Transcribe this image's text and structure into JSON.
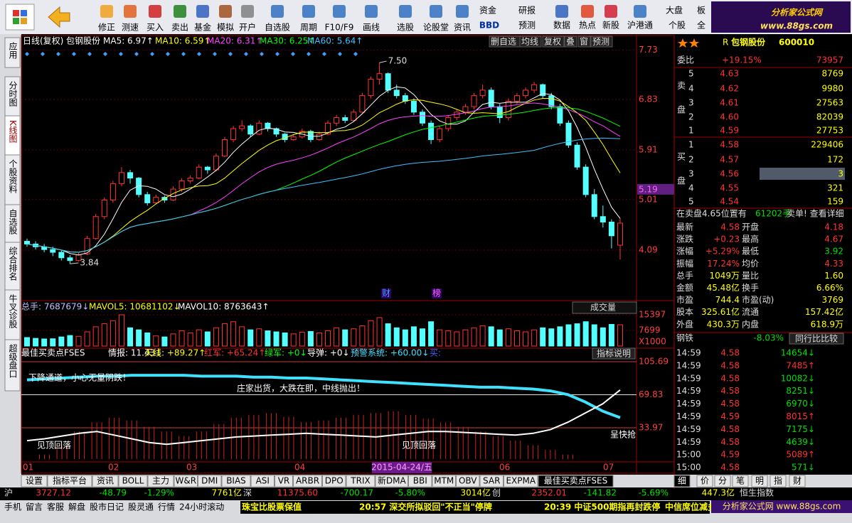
{
  "toolbar": {
    "buttons": [
      "修正",
      "测速",
      "买入",
      "卖出",
      "基金",
      "模拟",
      "开户",
      "自选股",
      "周期",
      "F10/F9",
      "画线",
      "选股",
      "论股堂",
      "资讯"
    ],
    "small": [
      "资金",
      "BBD",
      "研报",
      "预测",
      "数据",
      "热点",
      "新股",
      "沪港通",
      "大盘",
      "个股",
      "板",
      "全"
    ],
    "logo_title": "分析家公式网",
    "logo_url": "www.88gs.com"
  },
  "side_tabs": [
    "应用",
    "分时图",
    "K线图",
    "个股资料",
    "自选股",
    "综合排名",
    "牛叉诊股",
    "超级盘口"
  ],
  "chart_header": {
    "period": "日线(复权)",
    "stock": "包钢股份",
    "ma": [
      {
        "text": "MA5: 6.97↑",
        "color": "#ffffff"
      },
      {
        "text": "MA10: 6.59↑",
        "color": "#ffff00"
      },
      {
        "text": "MA20: 6.31↑",
        "color": "#ff40ff"
      },
      {
        "text": "MA30: 6.25↑",
        "color": "#00ff00"
      },
      {
        "text": "MA60: 5.64↑",
        "color": "#40c0ff"
      }
    ],
    "buttons": [
      "删自选",
      "均线",
      "复权",
      "叠",
      "窗",
      "预测"
    ]
  },
  "kline": {
    "ylim": [
      3.21,
      7.8
    ],
    "yticks": [
      7.73,
      6.83,
      5.91,
      5.01,
      4.09
    ],
    "current": 5.19,
    "high_label": "7.50",
    "low_label": "3.84",
    "events": [
      "财",
      "榜"
    ],
    "up_color": "#ff3232",
    "down_color": "#54ffff",
    "ma_colors": [
      "#ffffff",
      "#ffff00",
      "#ff40ff",
      "#00ff00",
      "#40c0ff"
    ],
    "ma_periods": [
      5,
      10,
      20,
      30,
      60
    ],
    "candles": [
      [
        4.25,
        4.3,
        4.15,
        4.2
      ],
      [
        4.2,
        4.25,
        4.1,
        4.15
      ],
      [
        4.15,
        4.2,
        4.05,
        4.1
      ],
      [
        4.1,
        4.15,
        3.98,
        4.05
      ],
      [
        4.05,
        4.08,
        3.9,
        3.95
      ],
      [
        3.95,
        4.0,
        3.84,
        3.9
      ],
      [
        3.9,
        4.05,
        3.88,
        4.0
      ],
      [
        4.02,
        4.35,
        4.0,
        4.3
      ],
      [
        4.3,
        4.75,
        4.28,
        4.7
      ],
      [
        4.7,
        5.05,
        4.65,
        5.0
      ],
      [
        5.0,
        5.35,
        4.95,
        5.3
      ],
      [
        5.3,
        5.6,
        5.25,
        5.5
      ],
      [
        5.5,
        5.55,
        5.3,
        5.4
      ],
      [
        5.4,
        5.42,
        5.05,
        5.1
      ],
      [
        5.1,
        5.15,
        4.9,
        4.95
      ],
      [
        4.95,
        5.1,
        4.92,
        5.05
      ],
      [
        5.05,
        5.08,
        4.95,
        5.0
      ],
      [
        5.0,
        5.25,
        4.98,
        5.2
      ],
      [
        5.2,
        5.4,
        5.15,
        5.35
      ],
      [
        5.35,
        5.45,
        5.3,
        5.4
      ],
      [
        5.4,
        5.65,
        5.38,
        5.6
      ],
      [
        5.6,
        5.62,
        5.48,
        5.55
      ],
      [
        5.55,
        5.85,
        5.52,
        5.8
      ],
      [
        5.8,
        6.15,
        5.78,
        6.1
      ],
      [
        6.1,
        6.35,
        6.05,
        6.3
      ],
      [
        6.3,
        6.45,
        6.25,
        6.35
      ],
      [
        6.35,
        6.38,
        6.15,
        6.2
      ],
      [
        6.2,
        6.45,
        6.18,
        6.4
      ],
      [
        6.4,
        6.42,
        6.25,
        6.3
      ],
      [
        6.3,
        6.32,
        6.15,
        6.2
      ],
      [
        6.2,
        6.22,
        6.05,
        6.1
      ],
      [
        6.1,
        6.2,
        6.08,
        6.15
      ],
      [
        6.15,
        6.3,
        6.12,
        6.25
      ],
      [
        6.25,
        6.28,
        6.05,
        6.1
      ],
      [
        6.1,
        6.25,
        6.08,
        6.2
      ],
      [
        6.2,
        6.45,
        6.18,
        6.4
      ],
      [
        6.4,
        6.55,
        6.35,
        6.5
      ],
      [
        6.5,
        6.55,
        6.4,
        6.45
      ],
      [
        6.45,
        6.65,
        6.42,
        6.6
      ],
      [
        6.6,
        6.95,
        6.58,
        6.9
      ],
      [
        6.9,
        7.25,
        6.85,
        7.2
      ],
      [
        7.2,
        7.5,
        7.1,
        7.3
      ],
      [
        7.3,
        7.32,
        6.95,
        7.0
      ],
      [
        7.0,
        7.1,
        6.85,
        6.9
      ],
      [
        6.9,
        6.95,
        6.75,
        6.8
      ],
      [
        6.8,
        6.85,
        6.55,
        6.6
      ],
      [
        6.6,
        6.65,
        6.35,
        6.4
      ],
      [
        6.4,
        6.45,
        6.02,
        6.1
      ],
      [
        6.1,
        6.35,
        6.05,
        6.3
      ],
      [
        6.3,
        6.55,
        6.25,
        6.5
      ],
      [
        6.5,
        6.65,
        6.45,
        6.6
      ],
      [
        6.6,
        6.75,
        6.55,
        6.7
      ],
      [
        6.7,
        6.95,
        6.65,
        6.9
      ],
      [
        6.9,
        7.1,
        6.85,
        7.0
      ],
      [
        7.0,
        7.05,
        6.65,
        6.7
      ],
      [
        6.7,
        6.75,
        6.4,
        6.5
      ],
      [
        6.5,
        6.85,
        6.45,
        6.8
      ],
      [
        6.8,
        6.95,
        6.75,
        6.9
      ],
      [
        6.9,
        7.05,
        6.85,
        7.0
      ],
      [
        7.0,
        7.15,
        6.95,
        7.1
      ],
      [
        7.1,
        7.12,
        6.85,
        6.9
      ],
      [
        6.9,
        6.95,
        6.65,
        6.7
      ],
      [
        6.7,
        6.75,
        6.35,
        6.4
      ],
      [
        6.4,
        6.45,
        5.95,
        6.0
      ],
      [
        6.0,
        6.05,
        5.55,
        5.6
      ],
      [
        5.6,
        5.65,
        5.05,
        5.1
      ],
      [
        5.1,
        5.2,
        4.65,
        4.7
      ],
      [
        4.7,
        4.9,
        4.5,
        4.6
      ],
      [
        4.6,
        4.65,
        4.12,
        4.35
      ],
      [
        4.18,
        4.67,
        3.92,
        4.58
      ]
    ]
  },
  "volume": {
    "header": [
      {
        "text": "总手: 7687679↓",
        "color": "#c0c0ff"
      },
      {
        "text": "MAVOL5: 10681102↓",
        "color": "#ffff00"
      },
      {
        "text": "MAVOL10: 8763643↑",
        "color": "#ffffff"
      }
    ],
    "dropdown": "成交量",
    "unit": "X1000",
    "ylim": [
      0,
      16450
    ],
    "yticks": [
      15397,
      7699
    ],
    "values": [
      4200,
      3800,
      3500,
      3600,
      4500,
      5200,
      4800,
      7000,
      9500,
      11000,
      12500,
      15397,
      9000,
      8000,
      6500,
      5000,
      4500,
      6000,
      7500,
      6500,
      8000,
      7000,
      9000,
      11000,
      12000,
      9500,
      8000,
      8500,
      7500,
      7000,
      6500,
      6000,
      6800,
      7200,
      6500,
      7500,
      9000,
      8000,
      8500,
      10000,
      12500,
      14000,
      11000,
      9000,
      8000,
      9500,
      8500,
      12000,
      8000,
      7500,
      7000,
      8000,
      9000,
      10000,
      9500,
      8000,
      8500,
      7500,
      7000,
      8000,
      9000,
      8500,
      9500,
      10500,
      11000,
      12000,
      10500,
      9000,
      10681,
      10490
    ]
  },
  "indicator": {
    "header": [
      {
        "text": "最佳买卖点FSES",
        "color": "#ffffff"
      },
      {
        "text": "情报: 11.43↓",
        "color": "#ffffff"
      },
      {
        "text": "天线: +89.27↑",
        "color": "#ffff00"
      },
      {
        "text": "红军: +65.24↑",
        "color": "#ff3232"
      },
      {
        "text": "绿军: +0↓",
        "color": "#00ff00"
      },
      {
        "text": "导弹: +0↓",
        "color": "#ffffff"
      },
      {
        "text": "预警系统: +60.00↓",
        "color": "#40e0ff"
      },
      {
        "text": "买:",
        "color": "#4060ff"
      }
    ],
    "button": "指标说明",
    "ylim": [
      -1.5,
      108.8
    ],
    "yticks": [
      105.69,
      69.83,
      33.97
    ],
    "line_main": [
      86,
      87,
      88,
      89,
      90,
      90,
      91,
      91,
      91,
      91,
      90,
      90,
      90,
      89,
      89,
      88,
      88,
      87,
      86,
      85,
      84,
      83,
      82,
      81,
      80,
      79,
      78,
      78,
      77,
      76,
      74,
      70,
      62,
      52,
      45
    ],
    "line_white": [
      20,
      22,
      25,
      28,
      30,
      26,
      22,
      18,
      16,
      18,
      20,
      22,
      24,
      25,
      26,
      27,
      28,
      27,
      26,
      25,
      24,
      26,
      28,
      30,
      30,
      29,
      28,
      27,
      26,
      28,
      32,
      40,
      50,
      60,
      75
    ],
    "bars": [
      0,
      5,
      15,
      30,
      40,
      45,
      42,
      35,
      30,
      25,
      30,
      38,
      45,
      48,
      50,
      46,
      40,
      42,
      45,
      48,
      50,
      52,
      48,
      44,
      40,
      35,
      30,
      25,
      20,
      15,
      10,
      5,
      0,
      0,
      0
    ],
    "notes": [
      "下降通道，小心无量阴跌！",
      "庄家出货，大跌在即，中线抛出！",
      "见顶回落",
      "见顶回落",
      "呈快抢"
    ]
  },
  "dates": {
    "labels": [
      "01",
      "02",
      "03",
      "04",
      "05",
      "06",
      "07"
    ],
    "cursor": "2015-04-24/五"
  },
  "bottom_tabs": [
    "设置",
    "指标平台",
    "资讯",
    "BOLL",
    "主力",
    "W&R",
    "DMI",
    "BIAS",
    "ASI",
    "VR",
    "ARBR",
    "DPO",
    "TRIX",
    "新DMA",
    "BBI",
    "MTM",
    "OBV",
    "SAR",
    "EXPMA",
    "最佳买卖点FSES"
  ],
  "quote": {
    "prefix": "R",
    "name": "包钢股份",
    "code": "600010",
    "weibi": [
      "委比",
      "+19.15%",
      "73957"
    ],
    "sell_label": "卖盘",
    "buy_label": "买盘",
    "sell": [
      [
        "5",
        "4.63",
        "8769"
      ],
      [
        "4",
        "4.62",
        "9980"
      ],
      [
        "3",
        "4.61",
        "27563"
      ],
      [
        "2",
        "4.60",
        "82039"
      ],
      [
        "1",
        "4.59",
        "27753"
      ]
    ],
    "buy": [
      [
        "1",
        "4.58",
        "229406"
      ],
      [
        "2",
        "4.57",
        "172"
      ],
      [
        "3",
        "4.56",
        "3"
      ],
      [
        "4",
        "4.55",
        "321"
      ],
      [
        "5",
        "4.54",
        "159"
      ]
    ],
    "notice": [
      "在卖盘4.65位置有",
      "61202手",
      "卖单! 查看详细"
    ],
    "stats": [
      [
        "最新",
        "4.58",
        "开盘",
        "4.18"
      ],
      [
        "涨跌",
        "+0.23",
        "最高",
        "4.67"
      ],
      [
        "涨幅",
        "+5.29%",
        "最低",
        "3.92"
      ],
      [
        "振幅",
        "17.24%",
        "均价",
        "4.33"
      ],
      [
        "总手",
        "1049万",
        "量比",
        "1.60"
      ],
      [
        "金额",
        "45.48亿",
        "换手",
        "6.66%"
      ],
      [
        "市盈",
        "744.4",
        "市盈(动)",
        "3769"
      ],
      [
        "股本",
        "325.61亿",
        "流通",
        "157.42亿"
      ],
      [
        "外盘",
        "430.3万",
        "内盘",
        "618.9万"
      ]
    ],
    "industry": [
      "钢铁",
      "-8.03%",
      "同行比比较"
    ],
    "ticks": [
      [
        "14:59",
        "4.58",
        "14654↓"
      ],
      [
        "14:59",
        "4.58",
        "7485↑"
      ],
      [
        "14:59",
        "4.58",
        "10082↓"
      ],
      [
        "14:59",
        "4.58",
        "8251↓"
      ],
      [
        "14:59",
        "4.58",
        "6970↓"
      ],
      [
        "14:59",
        "4.59",
        "8015↑"
      ],
      [
        "14:59",
        "4.58",
        "7175↓"
      ],
      [
        "14:59",
        "4.58",
        "4639↓"
      ],
      [
        "15:00",
        "4.59",
        "5089↑"
      ],
      [
        "15:00",
        "4.58",
        "571↓"
      ]
    ],
    "tabs": [
      "细",
      "价",
      "分",
      "笔",
      "明",
      "指",
      "财"
    ]
  },
  "status": [
    "沪",
    "3727.12",
    "-48.79",
    "-1.29%",
    "7761亿",
    "深",
    "11375.60",
    "-700.17",
    "-5.80%",
    "3014亿",
    "创",
    "2352.01",
    "-141.82",
    "-5.69%",
    "447.3亿",
    "恒生指数"
  ],
  "ticker": {
    "links": [
      "手机",
      "留言",
      "客服",
      "解盘",
      "股市日记",
      "股灵通",
      "行情",
      "24小时滚动"
    ],
    "news": [
      "珠宝比股票保值",
      "20:57 深交所拟驳回\"不正当\"停牌",
      "20:39 中证500期指再封跌停",
      "中信席位减多50"
    ],
    "logo": "分析家公式网 www.88gs.com"
  }
}
